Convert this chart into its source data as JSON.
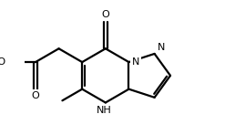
{
  "bg": "#ffffff",
  "lc": "#000000",
  "lw": 1.6,
  "fs": 8.0,
  "xlim": [
    -3.0,
    4.5
  ],
  "ylim": [
    -2.2,
    2.8
  ]
}
